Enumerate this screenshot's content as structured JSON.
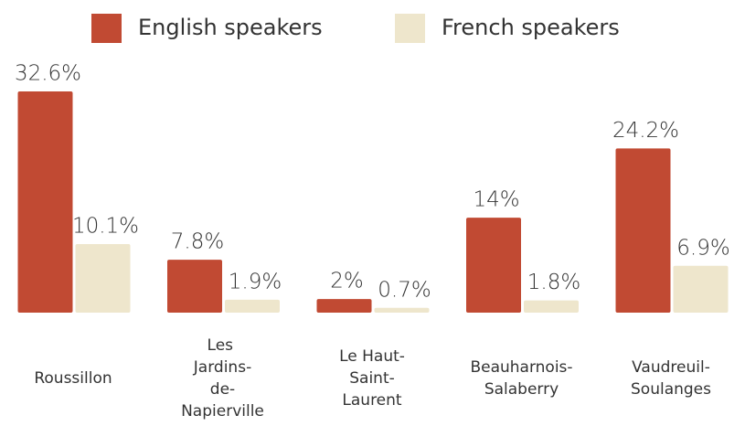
{
  "chart_data": {
    "type": "bar",
    "categories": [
      "Roussillon",
      "Les Jardins-de-Napierville",
      "Le Haut-Saint-Laurent",
      "Beauharnois-Salaberry",
      "Vaudreuil-Soulanges"
    ],
    "series": [
      {
        "name": "English speakers",
        "color": "#c14a33",
        "values": [
          32.6,
          7.8,
          2,
          14,
          24.2
        ],
        "value_labels": [
          "32.6%",
          "7.8%",
          "2%",
          "14%",
          "24.2%"
        ]
      },
      {
        "name": "French speakers",
        "color": "#eee6cc",
        "values": [
          10.1,
          1.9,
          0.7,
          1.8,
          6.9
        ],
        "value_labels": [
          "10.1%",
          "1.9%",
          "0.7%",
          "1.8%",
          "6.9%"
        ]
      }
    ],
    "legend": "top"
  }
}
